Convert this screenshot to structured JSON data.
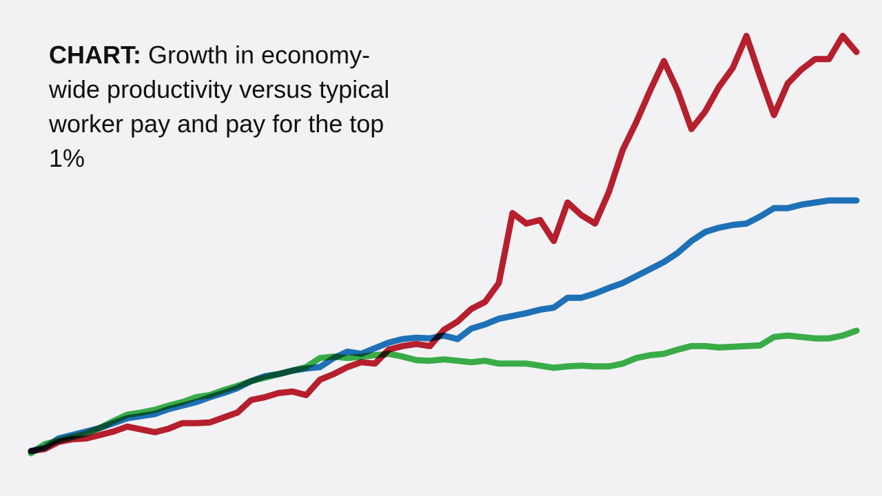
{
  "chart_data": {
    "type": "line",
    "title_label": "CHART:",
    "title": "Growth in economy-wide productivity versus typical worker pay and pay for the top 1%",
    "ylim": [
      -10,
      600
    ],
    "series": [
      {
        "color": "#3cb54a",
        "values": [
          -3,
          10,
          15,
          20,
          25,
          33,
          43,
          52,
          55,
          59,
          65,
          70,
          77,
          80,
          87,
          93,
          100,
          105,
          110,
          115,
          120,
          133,
          135,
          133,
          135,
          137,
          139,
          135,
          130,
          129,
          131,
          129,
          127,
          129,
          125,
          125,
          125,
          122,
          119,
          121,
          122,
          121,
          121,
          125,
          133,
          137,
          139,
          145,
          150,
          150,
          148,
          149,
          150,
          151,
          163,
          165,
          163,
          161,
          161,
          165,
          172
        ]
      },
      {
        "color": "#1f77c0",
        "values": [
          0,
          5,
          18,
          23,
          28,
          33,
          40,
          47,
          50,
          53,
          60,
          65,
          70,
          77,
          83,
          90,
          100,
          107,
          110,
          115,
          118,
          120,
          133,
          142,
          139,
          147,
          155,
          160,
          162,
          161,
          165,
          160,
          175,
          181,
          189,
          193,
          197,
          202,
          205,
          219,
          219,
          225,
          233,
          240,
          250,
          260,
          270,
          283,
          300,
          313,
          319,
          323,
          325,
          335,
          347,
          347,
          352,
          355,
          358,
          358,
          358
        ]
      },
      {
        "color": "#c0202f",
        "values": [
          0,
          3,
          13,
          17,
          18,
          23,
          28,
          35,
          31,
          27,
          32,
          40,
          40,
          41,
          48,
          55,
          73,
          77,
          83,
          85,
          80,
          102,
          110,
          120,
          127,
          125,
          145,
          150,
          153,
          150,
          173,
          185,
          203,
          213,
          240,
          340,
          325,
          330,
          300,
          355,
          337,
          325,
          370,
          430,
          470,
          515,
          557,
          515,
          460,
          485,
          520,
          547,
          593,
          535,
          480,
          525,
          545,
          560,
          560,
          593,
          570
        ]
      }
    ]
  }
}
